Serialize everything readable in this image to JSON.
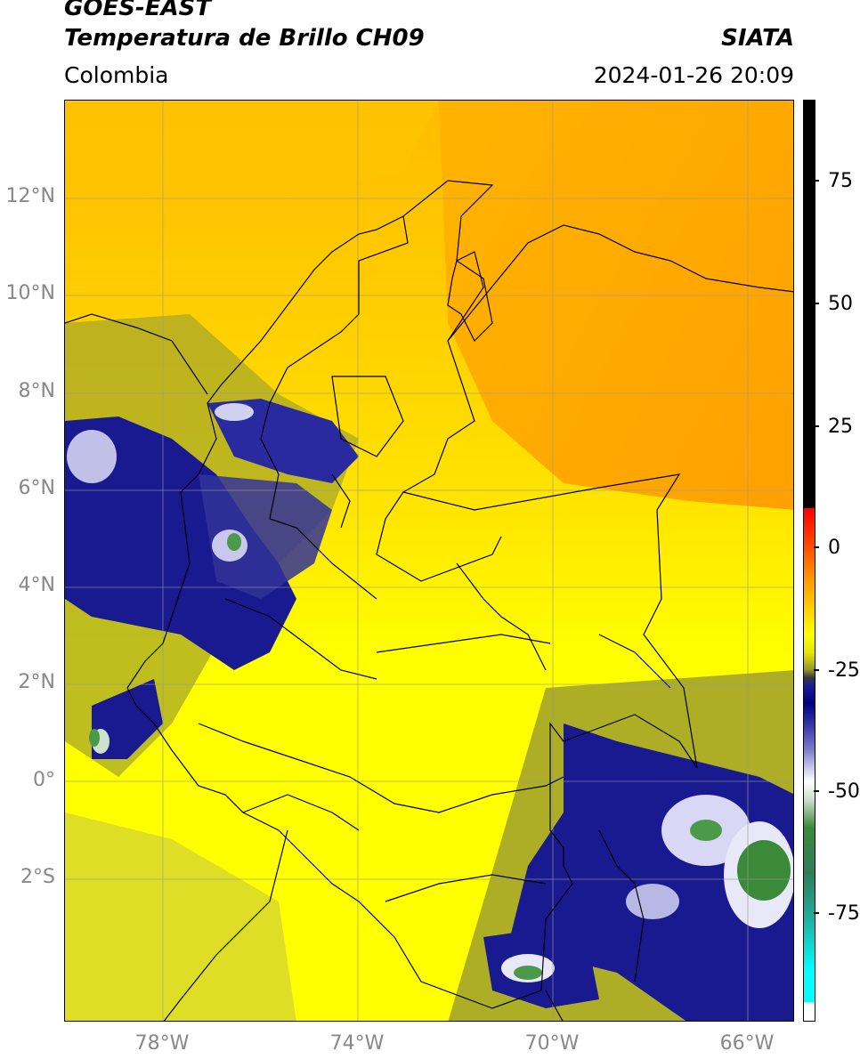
{
  "header": {
    "satellite": "GOES-EAST",
    "product": "Temperatura de Brillo CH09",
    "region": "Colombia",
    "source": "SIATA",
    "datetime": "2024-01-26 20:09"
  },
  "lat_ticks": [
    {
      "label": "12°N",
      "lat": 12
    },
    {
      "label": "10°N",
      "lat": 10
    },
    {
      "label": "8°N",
      "lat": 8
    },
    {
      "label": "6°N",
      "lat": 6
    },
    {
      "label": "4°N",
      "lat": 4
    },
    {
      "label": "2°N",
      "lat": 2
    },
    {
      "label": "0°",
      "lat": 0
    },
    {
      "label": "2°S",
      "lat": -2
    }
  ],
  "lon_ticks": [
    {
      "label": "78°W",
      "lon": -78
    },
    {
      "label": "74°W",
      "lon": -74
    },
    {
      "label": "70°W",
      "lon": -70
    },
    {
      "label": "66°W",
      "lon": -66
    }
  ],
  "colorbar": {
    "ticks": [
      {
        "label": "75",
        "value": 75
      },
      {
        "label": "50",
        "value": 50
      },
      {
        "label": "25",
        "value": 25
      },
      {
        "label": "0",
        "value": 0
      },
      {
        "label": "-25",
        "value": -25
      },
      {
        "label": "-50",
        "value": -50
      },
      {
        "label": "-75",
        "value": -75
      }
    ],
    "min": -92,
    "max": 90
  },
  "colors": {
    "warm": "#ffcc00",
    "hot": "#ffa000",
    "cold_blue": "#000080",
    "coldest_green": "#3a8a3a"
  }
}
